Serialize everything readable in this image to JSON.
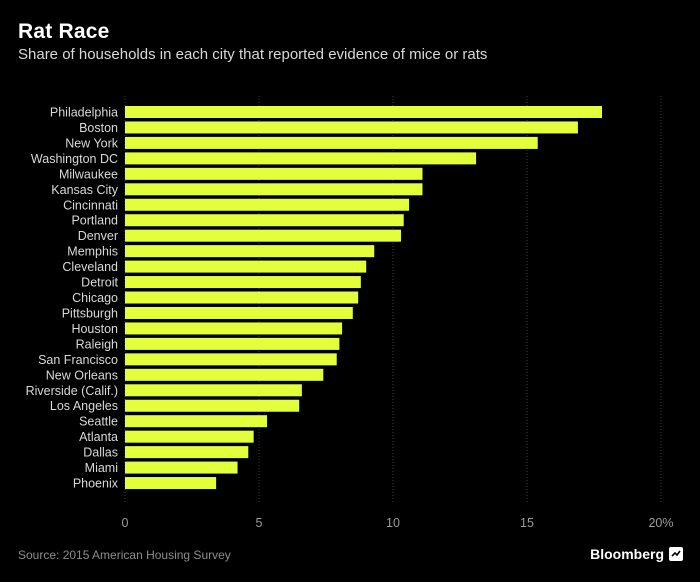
{
  "header": {
    "title": "Rat Race",
    "subtitle": "Share of households in each city that reported evidence of mice or rats"
  },
  "footer": {
    "source": "Source: 2015 American Housing Survey",
    "brand": "Bloomberg",
    "brand_icon": "bloomberg-logo-icon"
  },
  "colors": {
    "background": "#000000",
    "bar": "#e3ff3b",
    "grid": "#3a3a3a",
    "label": "#d8d8d8",
    "tick": "#9a9a9a"
  },
  "chart_data": {
    "type": "bar",
    "orientation": "horizontal",
    "categories": [
      "Philadelphia",
      "Boston",
      "New York",
      "Washington DC",
      "Milwaukee",
      "Kansas City",
      "Cincinnati",
      "Portland",
      "Denver",
      "Memphis",
      "Cleveland",
      "Detroit",
      "Chicago",
      "Pittsburgh",
      "Houston",
      "Raleigh",
      "San Francisco",
      "New Orleans",
      "Riverside (Calif.)",
      "Los Angeles",
      "Seattle",
      "Atlanta",
      "Dallas",
      "Miami",
      "Phoenix"
    ],
    "values": [
      17.8,
      16.9,
      15.4,
      13.1,
      11.1,
      11.1,
      10.6,
      10.4,
      10.3,
      9.3,
      9.0,
      8.8,
      8.7,
      8.5,
      8.1,
      8.0,
      7.9,
      7.4,
      6.6,
      6.5,
      5.3,
      4.8,
      4.6,
      4.2,
      3.4
    ],
    "xlim": [
      0,
      20
    ],
    "xticks": [
      "0",
      "5",
      "10",
      "15",
      "20%"
    ],
    "xtick_values": [
      0,
      5,
      10,
      15,
      20
    ],
    "grid": true,
    "title": "Rat Race",
    "subtitle": "Share of households in each city that reported evidence of mice or rats",
    "xlabel": "",
    "ylabel": ""
  }
}
